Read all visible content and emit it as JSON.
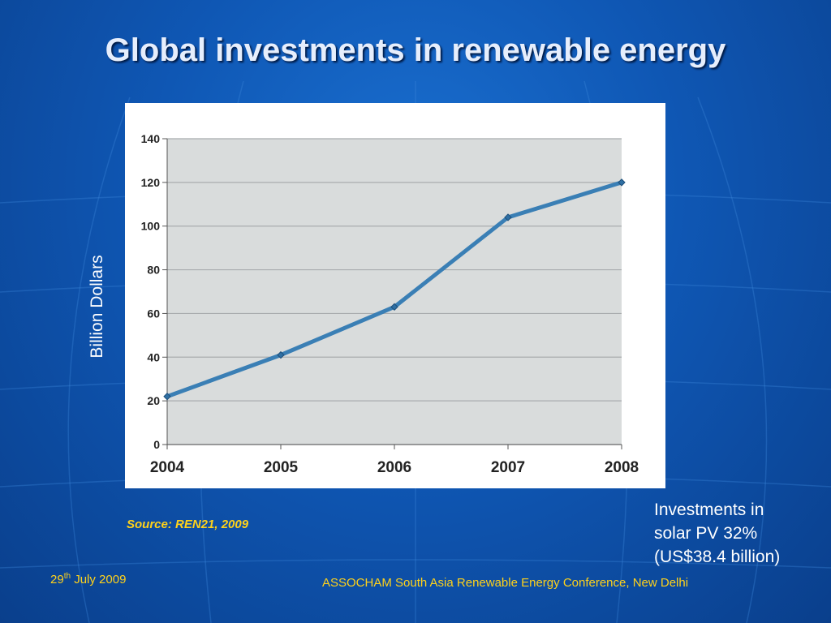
{
  "slide": {
    "title": "Global investments in renewable energy",
    "source": "Source: REN21, 2009",
    "annotation_lines": [
      "Investments in",
      "solar PV 32%",
      "(US$38.4 billion)"
    ],
    "footer_date_day": "29",
    "footer_date_suffix": "th",
    "footer_date_rest": " July 2009",
    "footer_conference": "ASSOCHAM South Asia Renewable Energy Conference, New Delhi"
  },
  "colors": {
    "line": "#3a7fb5",
    "plot_bg": "#d9dcdc",
    "grid": "#a9acae",
    "accent_text": "#ffd21a"
  },
  "chart_data": {
    "type": "line",
    "title": "",
    "xlabel": "",
    "ylabel": "Billion Dollars",
    "categories": [
      "2004",
      "2005",
      "2006",
      "2007",
      "2008"
    ],
    "series": [
      {
        "values": [
          22,
          41,
          63,
          104,
          120
        ]
      }
    ],
    "ylim": [
      0,
      140
    ],
    "yticks": [
      0,
      20,
      40,
      60,
      80,
      100,
      120,
      140
    ],
    "grid": true,
    "legend": "none"
  }
}
